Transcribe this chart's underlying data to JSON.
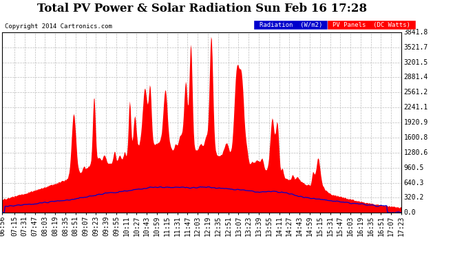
{
  "title": "Total PV Power & Solar Radiation Sun Feb 16 17:28",
  "copyright": "Copyright 2014 Cartronics.com",
  "background_color": "#ffffff",
  "plot_bg_color": "#ffffff",
  "yticks": [
    0.0,
    320.2,
    640.3,
    960.5,
    1280.6,
    1600.8,
    1920.9,
    2241.1,
    2561.2,
    2881.4,
    3201.5,
    3521.7,
    3841.8
  ],
  "ymax": 3841.8,
  "ymin": 0.0,
  "pv_color": "#ff0000",
  "radiation_color": "#0000cc",
  "grid_color": "#bbbbbb",
  "title_fontsize": 12,
  "axis_fontsize": 7,
  "xtick_labels": [
    "06:56",
    "07:15",
    "07:31",
    "07:47",
    "08:03",
    "08:19",
    "08:35",
    "08:51",
    "09:07",
    "09:23",
    "09:39",
    "09:55",
    "10:11",
    "10:27",
    "10:43",
    "10:59",
    "11:15",
    "11:31",
    "11:47",
    "12:03",
    "12:19",
    "12:35",
    "12:51",
    "13:07",
    "13:23",
    "13:39",
    "13:55",
    "14:11",
    "14:27",
    "14:43",
    "14:59",
    "15:15",
    "15:31",
    "15:47",
    "16:03",
    "16:19",
    "16:35",
    "16:51",
    "17:07",
    "17:23"
  ],
  "legend_rad_color": "#0000cc",
  "legend_pv_color": "#ff0000",
  "legend_rad_label": "Radiation  (W/m2)",
  "legend_pv_label": "PV Panels  (DC Watts)"
}
